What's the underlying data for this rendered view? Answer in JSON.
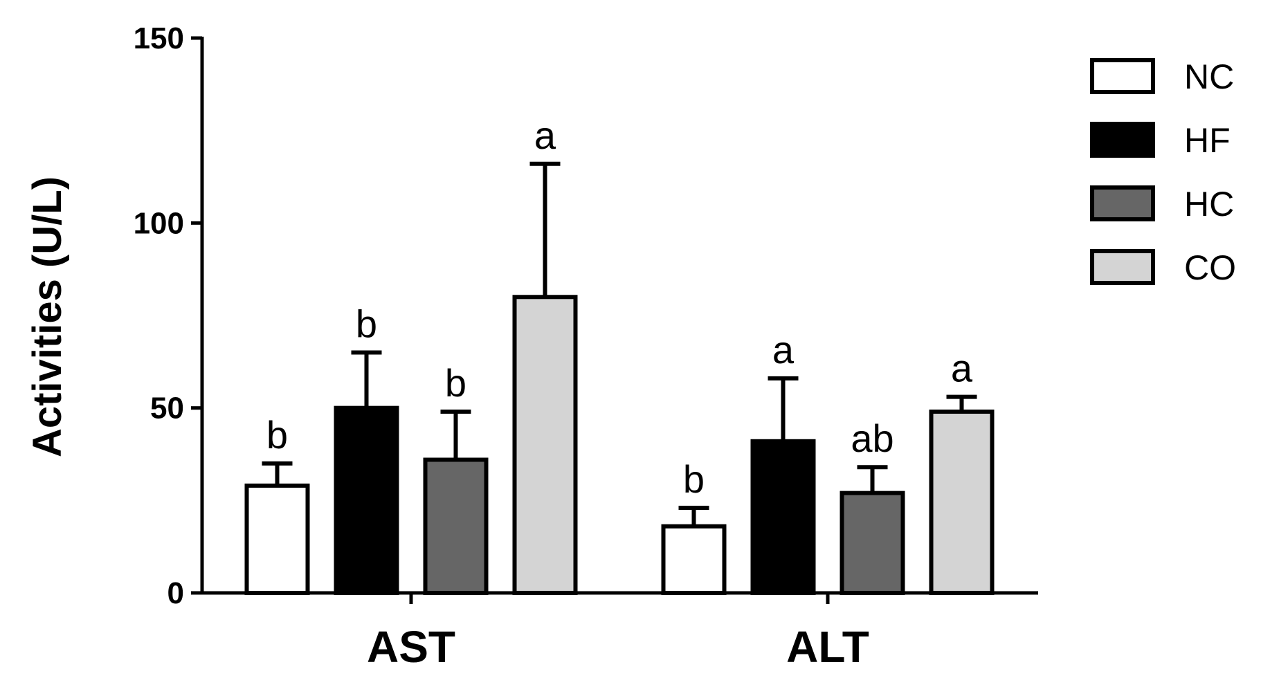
{
  "chart_data": {
    "type": "bar",
    "title": "",
    "xlabel": "",
    "ylabel": "Activities (U/L)",
    "ylim": [
      0,
      150
    ],
    "yticks": [
      "0",
      "50",
      "100",
      "150"
    ],
    "categories": [
      "AST",
      "ALT"
    ],
    "series": [
      {
        "name": "NC",
        "color": "#ffffff",
        "values": [
          29,
          18
        ],
        "errors": [
          6,
          5
        ],
        "letters": [
          "b",
          "b"
        ]
      },
      {
        "name": "HF",
        "color": "#000000",
        "values": [
          50,
          41
        ],
        "errors": [
          15,
          17
        ],
        "letters": [
          "b",
          "a"
        ]
      },
      {
        "name": "HC",
        "color": "#666666",
        "values": [
          36,
          27
        ],
        "errors": [
          13,
          7
        ],
        "letters": [
          "b",
          "ab"
        ]
      },
      {
        "name": "CO",
        "color": "#d4d4d4",
        "values": [
          80,
          49
        ],
        "errors": [
          36,
          4
        ],
        "letters": [
          "a",
          "a"
        ]
      }
    ],
    "grid": false,
    "legend": "top-right"
  }
}
